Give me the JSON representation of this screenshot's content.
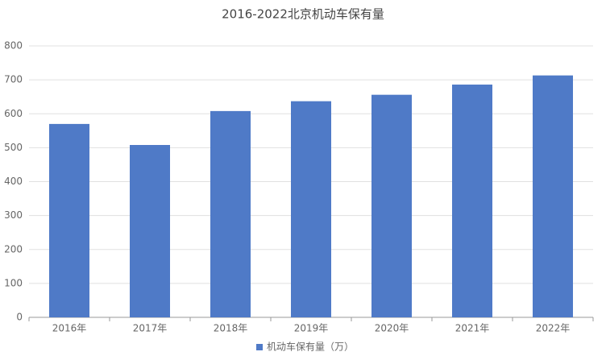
{
  "chart_data": {
    "type": "bar",
    "title": "2016-2022北京机动车保有量",
    "categories": [
      "2016年",
      "2017年",
      "2018年",
      "2019年",
      "2020年",
      "2021年",
      "2022年"
    ],
    "series": [
      {
        "name": "机动车保有量（万）",
        "color": "#4f7ac7",
        "values": [
          570,
          508,
          608,
          637,
          656,
          686,
          713
        ]
      }
    ],
    "ylim": [
      0,
      800
    ],
    "yticks": [
      0,
      100,
      200,
      300,
      400,
      500,
      600,
      700,
      800
    ],
    "grid": true,
    "legend": "bottom"
  }
}
